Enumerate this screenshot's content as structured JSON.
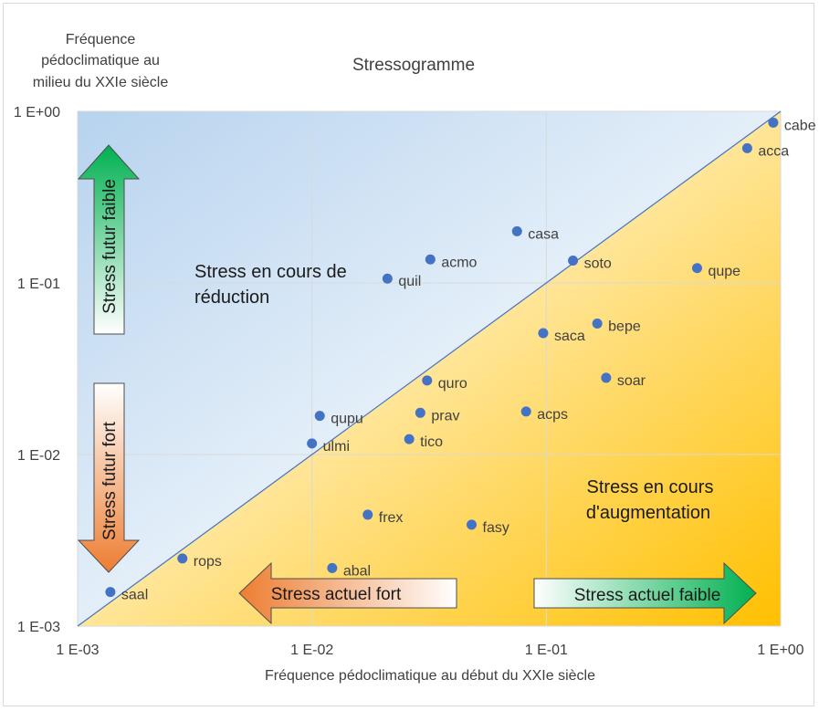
{
  "chart_data": {
    "type": "scatter",
    "title": "Stressogramme",
    "xlabel": "Fréquence pédoclimatique au début du XXIe siècle",
    "ylabel": [
      "Fréquence",
      "pédoclimatique au",
      "milieu du XXIe siècle"
    ],
    "xscale": "log",
    "yscale": "log",
    "xlim": [
      0.001,
      1
    ],
    "ylim": [
      0.001,
      1
    ],
    "x_ticks": [
      "1 E-03",
      "1 E-02",
      "1 E-01",
      "1 E+00"
    ],
    "y_ticks": [
      "1 E+00",
      "1 E-01",
      "1 E-02",
      "1 E-03"
    ],
    "grid": true,
    "diagonal": "y = x",
    "point_color": "#4472c4",
    "points": [
      {
        "label": "cabe",
        "x": 0.93,
        "y": 0.86
      },
      {
        "label": "acca",
        "x": 0.72,
        "y": 0.61
      },
      {
        "label": "casa",
        "x": 0.075,
        "y": 0.2
      },
      {
        "label": "acmo",
        "x": 0.032,
        "y": 0.137
      },
      {
        "label": "soto",
        "x": 0.13,
        "y": 0.135
      },
      {
        "label": "qupe",
        "x": 0.44,
        "y": 0.122
      },
      {
        "label": "quil",
        "x": 0.021,
        "y": 0.106
      },
      {
        "label": "bepe",
        "x": 0.165,
        "y": 0.058
      },
      {
        "label": "saca",
        "x": 0.097,
        "y": 0.051
      },
      {
        "label": "soar",
        "x": 0.18,
        "y": 0.028
      },
      {
        "label": "quro",
        "x": 0.031,
        "y": 0.027
      },
      {
        "label": "acps",
        "x": 0.082,
        "y": 0.0178
      },
      {
        "label": "prav",
        "x": 0.029,
        "y": 0.0175
      },
      {
        "label": "qupu",
        "x": 0.0108,
        "y": 0.0168
      },
      {
        "label": "ulmi",
        "x": 0.01,
        "y": 0.0116
      },
      {
        "label": "tico",
        "x": 0.026,
        "y": 0.0123
      },
      {
        "label": "frex",
        "x": 0.0173,
        "y": 0.00446
      },
      {
        "label": "fasy",
        "x": 0.048,
        "y": 0.0039
      },
      {
        "label": "rops",
        "x": 0.0028,
        "y": 0.00248
      },
      {
        "label": "abal",
        "x": 0.0122,
        "y": 0.00218
      },
      {
        "label": "saal",
        "x": 0.00138,
        "y": 0.00158
      }
    ],
    "annotations": {
      "upper_region": [
        "Stress en cours de",
        "réduction"
      ],
      "lower_region": [
        "Stress en cours",
        "d'augmentation"
      ],
      "arrow_up": "Stress futur faible",
      "arrow_down": "Stress futur fort",
      "arrow_left": "Stress actuel fort",
      "arrow_right": "Stress actuel faible"
    }
  },
  "colors": {
    "upper_triangle": "#bdd7ee",
    "lower_triangle": "#ffc000",
    "grid": "#d9d9d9",
    "diagonal": "#4472c4",
    "arrow_green": "#00b050",
    "arrow_orange": "#ed7d31"
  }
}
